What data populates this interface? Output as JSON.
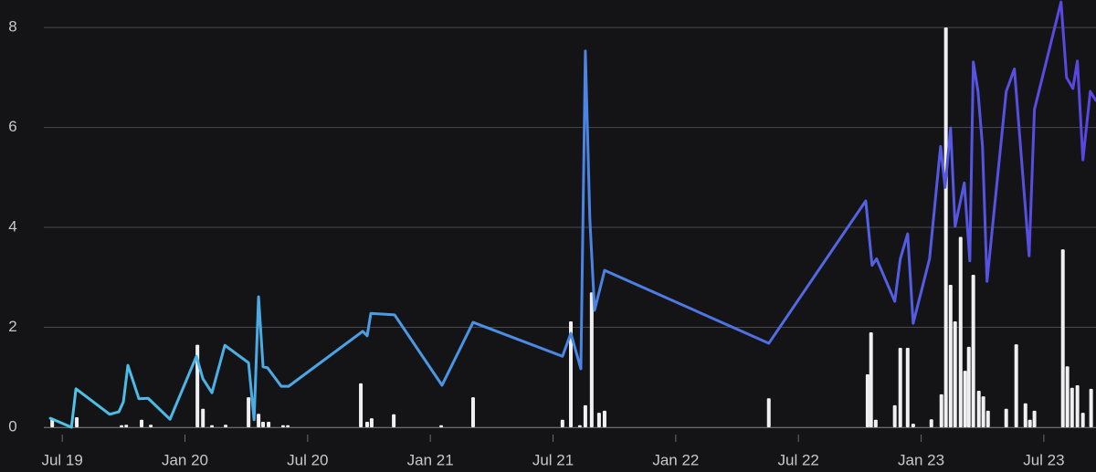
{
  "chart_data": {
    "type": "combo",
    "xlim": [
      -0.9,
      50.55
    ],
    "ylim": [
      0,
      8.55
    ],
    "yticks": [
      0,
      2,
      4,
      6,
      8
    ],
    "xticks": [
      {
        "value": 0,
        "label": "Jul 19"
      },
      {
        "value": 6,
        "label": "Jan 20"
      },
      {
        "value": 12,
        "label": "Jul 20"
      },
      {
        "value": 18,
        "label": "Jan 21"
      },
      {
        "value": 24,
        "label": "Jul 21"
      },
      {
        "value": 30,
        "label": "Jan 22"
      },
      {
        "value": 36,
        "label": "Jul 22"
      },
      {
        "value": 42,
        "label": "Jan 23"
      },
      {
        "value": 48,
        "label": "Jul 23"
      }
    ],
    "grid": true,
    "series": [
      {
        "type": "bar",
        "color": "#f0f0f2",
        "x": [
          -0.49,
          0.71,
          2.9,
          3.13,
          3.88,
          4.33,
          6.61,
          6.88,
          7.32,
          7.99,
          9.11,
          9.6,
          9.82,
          10.09,
          10.8,
          11.03,
          14.6,
          14.91,
          15.13,
          16.21,
          18.53,
          20.09,
          24.46,
          24.87,
          25.31,
          25.58,
          25.89,
          26.25,
          26.52,
          34.55,
          39.38,
          39.55,
          39.78,
          40.71,
          40.98,
          41.34,
          41.61,
          42.5,
          42.99,
          43.21,
          43.44,
          43.66,
          43.93,
          44.15,
          44.33,
          44.55,
          44.82,
          45.04,
          45.27,
          46.16,
          46.65,
          47.1,
          47.32,
          47.54,
          48.93,
          49.15,
          49.38,
          49.64,
          49.91,
          50.31
        ],
        "values": [
          0.18,
          0.2,
          0.04,
          0.05,
          0.15,
          0.05,
          1.65,
          0.37,
          0.04,
          0.05,
          0.6,
          0.27,
          0.11,
          0.11,
          0.04,
          0.04,
          0.88,
          0.11,
          0.18,
          0.26,
          0.04,
          0.6,
          0.15,
          2.12,
          0.04,
          0.44,
          2.7,
          0.29,
          0.33,
          0.58,
          1.06,
          1.9,
          0.15,
          0.44,
          1.59,
          1.59,
          0.07,
          0.16,
          0.66,
          8.0,
          2.85,
          2.12,
          3.81,
          1.13,
          1.61,
          3.05,
          0.73,
          0.62,
          0.33,
          0.37,
          1.66,
          0.48,
          0.15,
          0.33,
          3.56,
          1.22,
          0.79,
          0.84,
          0.29,
          0.77
        ]
      },
      {
        "type": "line",
        "colors": [
          "#4cc6e6",
          "#4a86e4",
          "#5a45e2"
        ],
        "x": [
          -0.58,
          0.45,
          0.67,
          2.32,
          2.77,
          2.99,
          3.21,
          3.75,
          4.2,
          5.27,
          6.56,
          6.88,
          7.32,
          7.95,
          9.11,
          9.38,
          9.6,
          9.82,
          10.04,
          10.71,
          11.07,
          14.69,
          14.91,
          15.09,
          16.25,
          18.57,
          20.09,
          24.46,
          24.87,
          25.36,
          25.58,
          25.8,
          26.03,
          26.52,
          34.55,
          39.29,
          39.6,
          39.82,
          40.71,
          40.98,
          41.34,
          41.61,
          42.41,
          42.95,
          43.17,
          43.44,
          43.66,
          44.11,
          44.38,
          44.55,
          44.78,
          45.0,
          45.22,
          46.16,
          46.56,
          47.28,
          47.54,
          48.84,
          49.11,
          49.42,
          49.64,
          49.91,
          50.27,
          50.54
        ],
        "values": [
          0.18,
          0,
          0.77,
          0.26,
          0.31,
          0.51,
          1.24,
          0.57,
          0.58,
          0.16,
          1.42,
          0.97,
          0.69,
          1.64,
          1.29,
          0.15,
          2.61,
          1.21,
          1.19,
          0.82,
          0.82,
          1.92,
          1.83,
          2.28,
          2.25,
          0.84,
          2.1,
          1.42,
          1.88,
          1.17,
          7.53,
          4.16,
          2.34,
          3.14,
          1.68,
          4.53,
          3.24,
          3.37,
          2.52,
          3.37,
          3.87,
          2.08,
          3.37,
          5.62,
          4.8,
          5.99,
          4.02,
          4.89,
          3.33,
          7.31,
          6.72,
          5.62,
          2.92,
          6.72,
          7.17,
          3.43,
          6.36,
          8.51,
          7.0,
          6.78,
          7.33,
          5.35,
          6.72,
          6.54
        ]
      }
    ]
  }
}
